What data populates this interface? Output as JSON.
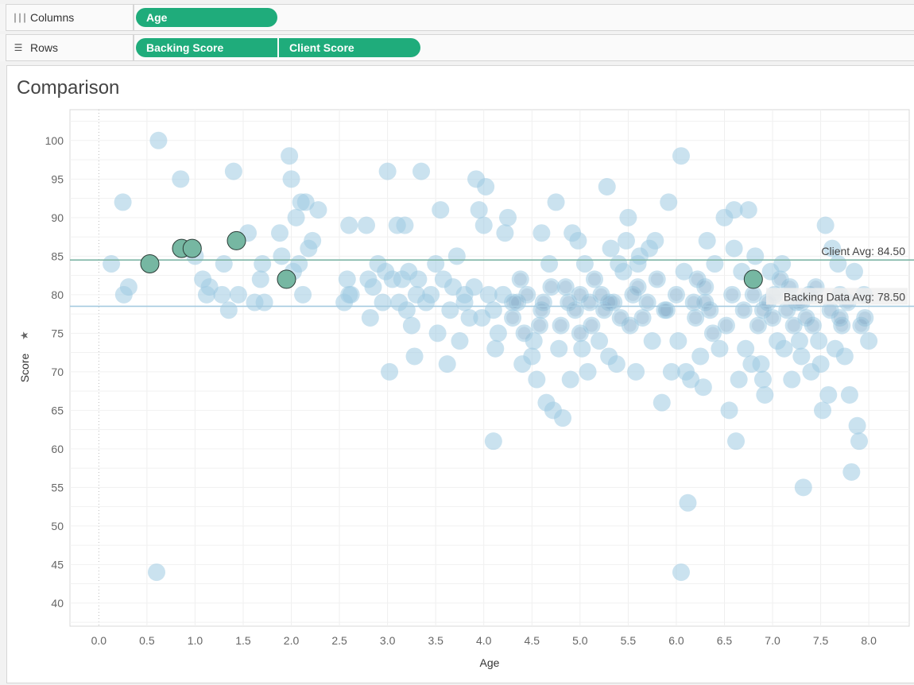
{
  "shelves": {
    "columns": {
      "label": "Columns",
      "icon": "columns-icon",
      "pills": [
        "Age"
      ]
    },
    "rows": {
      "label": "Rows",
      "icon": "rows-icon",
      "pills": [
        "Backing Score",
        "Client Score"
      ]
    }
  },
  "sheet_title": "Comparison",
  "chart_data": {
    "type": "scatter",
    "title": "",
    "xlabel": "Age",
    "ylabel": "Score",
    "xlim": [
      -0.3,
      8.42
    ],
    "ylim": [
      37,
      104
    ],
    "xticks": [
      "0.0",
      "0.5",
      "1.0",
      "1.5",
      "2.0",
      "2.5",
      "3.0",
      "3.5",
      "4.0",
      "4.5",
      "5.0",
      "5.5",
      "6.0",
      "6.5",
      "7.0",
      "7.5",
      "8.0"
    ],
    "yticks": [
      "40",
      "45",
      "50",
      "55",
      "60",
      "65",
      "70",
      "75",
      "80",
      "85",
      "90",
      "95",
      "100"
    ],
    "grid": true,
    "colors": {
      "backing": "#9ecae1",
      "client": "#76b7a2",
      "client_avg_line": "#7fb6a6",
      "backing_avg_line": "#a6cbe0"
    },
    "reference_lines": [
      {
        "label": "Client Avg: 84.50",
        "value": 84.5
      },
      {
        "label": "Backing Data Avg: 78.50",
        "value": 78.5
      }
    ],
    "series": [
      {
        "name": "Backing Score",
        "points": [
          [
            0.13,
            84
          ],
          [
            0.25,
            92
          ],
          [
            0.26,
            80
          ],
          [
            0.31,
            81
          ],
          [
            0.62,
            100
          ],
          [
            0.85,
            95
          ],
          [
            1.0,
            85
          ],
          [
            1.08,
            82
          ],
          [
            1.12,
            80
          ],
          [
            1.15,
            81
          ],
          [
            1.28,
            80
          ],
          [
            1.3,
            84
          ],
          [
            1.35,
            78
          ],
          [
            1.4,
            96
          ],
          [
            1.45,
            80
          ],
          [
            1.55,
            88
          ],
          [
            1.62,
            79
          ],
          [
            1.68,
            82
          ],
          [
            1.7,
            84
          ],
          [
            1.72,
            79
          ],
          [
            1.88,
            88
          ],
          [
            1.9,
            85
          ],
          [
            1.98,
            98
          ],
          [
            2.0,
            95
          ],
          [
            2.02,
            83
          ],
          [
            2.05,
            90
          ],
          [
            2.08,
            84
          ],
          [
            2.1,
            92
          ],
          [
            2.12,
            80
          ],
          [
            2.15,
            92
          ],
          [
            2.18,
            86
          ],
          [
            2.22,
            87
          ],
          [
            2.28,
            91
          ],
          [
            2.55,
            79
          ],
          [
            2.58,
            82
          ],
          [
            2.6,
            89
          ],
          [
            2.62,
            80
          ],
          [
            2.78,
            89
          ],
          [
            2.8,
            82
          ],
          [
            2.82,
            77
          ],
          [
            2.85,
            81
          ],
          [
            2.9,
            84
          ],
          [
            2.95,
            79
          ],
          [
            2.98,
            83
          ],
          [
            3.0,
            96
          ],
          [
            3.02,
            70
          ],
          [
            3.05,
            82
          ],
          [
            3.1,
            89
          ],
          [
            3.12,
            79
          ],
          [
            3.15,
            82
          ],
          [
            3.18,
            89
          ],
          [
            3.22,
            83
          ],
          [
            3.25,
            76
          ],
          [
            3.28,
            72
          ],
          [
            3.3,
            80
          ],
          [
            3.32,
            82
          ],
          [
            3.35,
            96
          ],
          [
            3.4,
            79
          ],
          [
            3.45,
            80
          ],
          [
            3.5,
            84
          ],
          [
            3.52,
            75
          ],
          [
            3.55,
            91
          ],
          [
            3.58,
            82
          ],
          [
            3.62,
            71
          ],
          [
            3.65,
            78
          ],
          [
            3.68,
            81
          ],
          [
            3.72,
            85
          ],
          [
            3.75,
            74
          ],
          [
            3.8,
            79
          ],
          [
            3.85,
            77
          ],
          [
            3.9,
            81
          ],
          [
            3.92,
            95
          ],
          [
            3.95,
            91
          ],
          [
            3.98,
            77
          ],
          [
            4.0,
            89
          ],
          [
            4.02,
            94
          ],
          [
            4.05,
            80
          ],
          [
            4.1,
            61
          ],
          [
            4.12,
            73
          ],
          [
            4.15,
            75
          ],
          [
            4.2,
            80
          ],
          [
            4.22,
            88
          ],
          [
            4.25,
            90
          ],
          [
            4.3,
            77
          ],
          [
            4.35,
            79
          ],
          [
            4.38,
            82
          ],
          [
            4.4,
            71
          ],
          [
            4.42,
            75
          ],
          [
            4.45,
            80
          ],
          [
            4.5,
            72
          ],
          [
            4.52,
            74
          ],
          [
            4.55,
            69
          ],
          [
            4.58,
            76
          ],
          [
            4.6,
            88
          ],
          [
            4.62,
            79
          ],
          [
            4.65,
            66
          ],
          [
            4.68,
            84
          ],
          [
            4.7,
            81
          ],
          [
            4.72,
            65
          ],
          [
            4.75,
            92
          ],
          [
            4.78,
            73
          ],
          [
            4.8,
            76
          ],
          [
            4.82,
            64
          ],
          [
            4.85,
            81
          ],
          [
            4.88,
            79
          ],
          [
            4.9,
            69
          ],
          [
            4.92,
            88
          ],
          [
            4.95,
            78
          ],
          [
            4.98,
            87
          ],
          [
            5.0,
            75
          ],
          [
            5.02,
            73
          ],
          [
            5.05,
            84
          ],
          [
            5.08,
            70
          ],
          [
            5.1,
            79
          ],
          [
            5.12,
            76
          ],
          [
            5.15,
            82
          ],
          [
            5.2,
            74
          ],
          [
            5.22,
            80
          ],
          [
            5.25,
            78
          ],
          [
            5.28,
            94
          ],
          [
            5.3,
            72
          ],
          [
            5.32,
            86
          ],
          [
            5.35,
            79
          ],
          [
            5.38,
            71
          ],
          [
            5.4,
            84
          ],
          [
            5.42,
            77
          ],
          [
            5.45,
            83
          ],
          [
            5.48,
            87
          ],
          [
            5.5,
            90
          ],
          [
            5.52,
            76
          ],
          [
            5.55,
            80
          ],
          [
            5.58,
            70
          ],
          [
            5.6,
            81
          ],
          [
            5.62,
            85
          ],
          [
            5.65,
            77
          ],
          [
            5.7,
            79
          ],
          [
            5.72,
            86
          ],
          [
            5.75,
            74
          ],
          [
            5.78,
            87
          ],
          [
            5.8,
            82
          ],
          [
            5.85,
            66
          ],
          [
            5.88,
            78
          ],
          [
            5.92,
            92
          ],
          [
            5.95,
            70
          ],
          [
            6.0,
            80
          ],
          [
            6.02,
            74
          ],
          [
            6.05,
            98
          ],
          [
            6.08,
            83
          ],
          [
            6.1,
            70
          ],
          [
            6.12,
            53
          ],
          [
            6.15,
            69
          ],
          [
            6.18,
            79
          ],
          [
            6.2,
            77
          ],
          [
            6.22,
            82
          ],
          [
            6.25,
            72
          ],
          [
            6.28,
            68
          ],
          [
            6.3,
            81
          ],
          [
            6.32,
            87
          ],
          [
            6.35,
            78
          ],
          [
            6.38,
            75
          ],
          [
            6.4,
            84
          ],
          [
            6.45,
            73
          ],
          [
            6.5,
            90
          ],
          [
            6.52,
            76
          ],
          [
            6.55,
            65
          ],
          [
            6.58,
            80
          ],
          [
            6.6,
            91
          ],
          [
            6.62,
            61
          ],
          [
            6.65,
            69
          ],
          [
            6.68,
            83
          ],
          [
            6.7,
            78
          ],
          [
            6.72,
            73
          ],
          [
            6.75,
            91
          ],
          [
            6.78,
            71
          ],
          [
            6.8,
            80
          ],
          [
            6.82,
            85
          ],
          [
            6.85,
            76
          ],
          [
            6.88,
            71
          ],
          [
            6.9,
            69
          ],
          [
            6.92,
            67
          ],
          [
            6.95,
            79
          ],
          [
            6.98,
            83
          ],
          [
            7.0,
            77
          ],
          [
            7.02,
            80
          ],
          [
            7.05,
            74
          ],
          [
            7.08,
            82
          ],
          [
            7.1,
            84
          ],
          [
            7.12,
            73
          ],
          [
            7.15,
            78
          ],
          [
            7.18,
            81
          ],
          [
            7.2,
            69
          ],
          [
            7.22,
            76
          ],
          [
            7.25,
            79
          ],
          [
            7.28,
            74
          ],
          [
            7.3,
            72
          ],
          [
            7.32,
            55
          ],
          [
            7.35,
            77
          ],
          [
            7.38,
            80
          ],
          [
            7.4,
            70
          ],
          [
            7.42,
            76
          ],
          [
            7.45,
            81
          ],
          [
            7.48,
            74
          ],
          [
            7.5,
            71
          ],
          [
            7.52,
            65
          ],
          [
            7.55,
            89
          ],
          [
            7.58,
            67
          ],
          [
            7.6,
            78
          ],
          [
            7.62,
            86
          ],
          [
            7.65,
            73
          ],
          [
            7.68,
            84
          ],
          [
            7.7,
            80
          ],
          [
            7.72,
            76
          ],
          [
            7.75,
            72
          ],
          [
            7.78,
            79
          ],
          [
            7.8,
            67
          ],
          [
            7.82,
            57
          ],
          [
            7.85,
            83
          ],
          [
            7.88,
            63
          ],
          [
            7.9,
            61
          ],
          [
            7.92,
            76
          ],
          [
            7.95,
            80
          ],
          [
            8.0,
            74
          ],
          [
            7.96,
            77
          ],
          [
            6.6,
            86
          ],
          [
            5.6,
            84
          ],
          [
            4.3,
            79
          ],
          [
            3.8,
            80
          ],
          [
            2.6,
            80
          ],
          [
            6.3,
            79
          ],
          [
            7.7,
            77
          ],
          [
            0.6,
            44
          ],
          [
            6.05,
            44
          ],
          [
            4.6,
            78
          ],
          [
            5.0,
            80
          ],
          [
            5.3,
            79
          ],
          [
            6.9,
            78
          ],
          [
            7.3,
            79
          ],
          [
            3.2,
            78
          ],
          [
            4.1,
            78
          ],
          [
            5.9,
            78
          ]
        ]
      },
      {
        "name": "Client Score",
        "points": [
          [
            0.53,
            84
          ],
          [
            0.86,
            86
          ],
          [
            0.97,
            86
          ],
          [
            1.43,
            87
          ],
          [
            1.95,
            82
          ],
          [
            6.8,
            82
          ]
        ]
      }
    ]
  }
}
